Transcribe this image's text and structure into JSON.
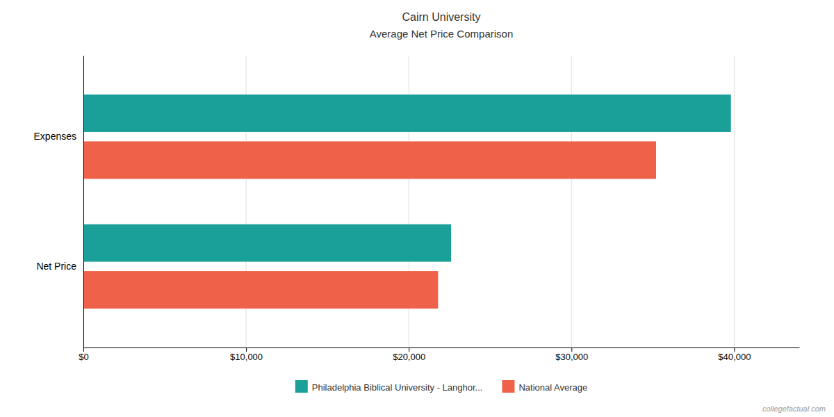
{
  "chart_data": {
    "type": "bar",
    "orientation": "horizontal",
    "title": "Cairn University",
    "subtitle": "Average Net Price Comparison",
    "categories": [
      "Net Price",
      "Expenses"
    ],
    "series": [
      {
        "name": "Philadelphia Biblical University - Langhor...",
        "color": "#1aa098",
        "values": [
          22600,
          39800
        ]
      },
      {
        "name": "National Average",
        "color": "#f0614a",
        "values": [
          21800,
          35200
        ]
      }
    ],
    "xlim": [
      0,
      44000
    ],
    "xticks": [
      {
        "value": 0,
        "label": "$0"
      },
      {
        "value": 10000,
        "label": "$10,000"
      },
      {
        "value": 20000,
        "label": "$20,000"
      },
      {
        "value": 30000,
        "label": "$30,000"
      },
      {
        "value": 40000,
        "label": "$40,000"
      }
    ],
    "grid": true,
    "legend": "bottom",
    "annotations": [
      "collegefactual.com"
    ]
  }
}
